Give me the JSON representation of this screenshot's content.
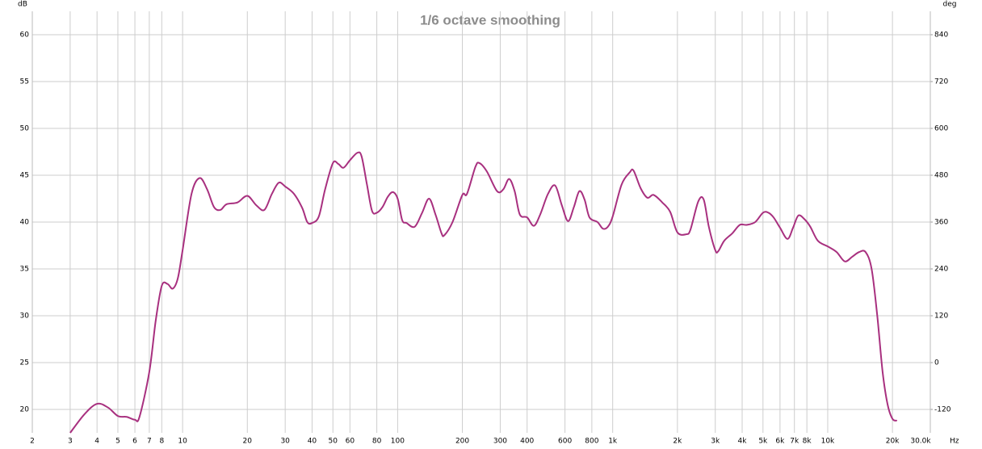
{
  "chart_data": {
    "type": "line",
    "title": "1/6 octave smoothing",
    "ylabel": "dB",
    "y2label": "deg",
    "xunit": "Hz",
    "xscale": "log",
    "grid": true,
    "xlim": [
      2,
      30000
    ],
    "ylim": [
      17.5,
      62.5
    ],
    "y2lim": [
      -180,
      900
    ],
    "xticks": [
      2,
      3,
      4,
      5,
      6,
      7,
      8,
      10,
      20,
      30,
      40,
      50,
      60,
      80,
      100,
      200,
      300,
      400,
      600,
      800,
      {
        "value": 1000,
        "label": "1k"
      },
      {
        "value": 2000,
        "label": "2k"
      },
      {
        "value": 3000,
        "label": "3k"
      },
      {
        "value": 4000,
        "label": "4k"
      },
      {
        "value": 5000,
        "label": "5k"
      },
      {
        "value": 6000,
        "label": "6k"
      },
      {
        "value": 7000,
        "label": "7k"
      },
      {
        "value": 8000,
        "label": "8k"
      },
      {
        "value": 10000,
        "label": "10k"
      },
      {
        "value": 20000,
        "label": "20k"
      },
      {
        "value": 30000,
        "label": "30.0k"
      }
    ],
    "yticks": [
      20,
      25,
      30,
      35,
      40,
      45,
      50,
      55,
      60
    ],
    "y2ticks": [
      -120,
      0,
      120,
      240,
      360,
      480,
      600,
      720,
      840
    ],
    "x": [
      3,
      3.5,
      4,
      4.5,
      5,
      5.5,
      6,
      6.3,
      7,
      7.5,
      8,
      8.5,
      9,
      9.5,
      10,
      11,
      12,
      13,
      14,
      15,
      16,
      18,
      20,
      22,
      24,
      26,
      28,
      30,
      33,
      36,
      38,
      40,
      43,
      46,
      50,
      53,
      56,
      60,
      65,
      68,
      72,
      76,
      80,
      85,
      90,
      95,
      100,
      105,
      110,
      120,
      130,
      140,
      150,
      160,
      165,
      180,
      200,
      210,
      230,
      240,
      260,
      290,
      310,
      330,
      350,
      370,
      400,
      430,
      460,
      500,
      540,
      580,
      620,
      660,
      700,
      740,
      780,
      850,
      900,
      950,
      1000,
      1100,
      1200,
      1250,
      1350,
      1450,
      1550,
      1700,
      1850,
      2000,
      2200,
      2300,
      2500,
      2650,
      2800,
      3000,
      3100,
      3300,
      3600,
      3900,
      4200,
      4600,
      5000,
      5300,
      5600,
      6000,
      6500,
      6900,
      7300,
      7800,
      8300,
      9000,
      10000,
      11000,
      12000,
      13000,
      14000,
      15000,
      16000,
      17000,
      18000,
      19000,
      20000,
      21000
    ],
    "series": [
      {
        "color": "#a8307f",
        "values": [
          17.5,
          19.5,
          20.6,
          20.2,
          19.3,
          19.2,
          18.9,
          19.2,
          24,
          29.5,
          33.2,
          33.4,
          32.9,
          34,
          37,
          43,
          44.7,
          43.5,
          41.6,
          41.3,
          41.9,
          42.1,
          42.8,
          41.8,
          41.3,
          43,
          44.2,
          43.8,
          43,
          41.5,
          40,
          39.9,
          40.6,
          43.5,
          46.3,
          46.2,
          45.8,
          46.6,
          47.4,
          47,
          44,
          41.2,
          41,
          41.6,
          42.7,
          43.2,
          42.5,
          40.2,
          39.9,
          39.5,
          41,
          42.5,
          40.8,
          38.8,
          38.6,
          40,
          42.9,
          43,
          45.9,
          46.3,
          45.4,
          43.3,
          43.5,
          44.6,
          43.3,
          40.8,
          40.5,
          39.6,
          40.8,
          43,
          43.9,
          41.8,
          40.1,
          41.6,
          43.3,
          42.4,
          40.5,
          40,
          39.3,
          39.5,
          40.6,
          44,
          45.3,
          45.5,
          43.6,
          42.6,
          42.9,
          42.1,
          41.1,
          38.9,
          38.7,
          39.2,
          42.2,
          42.4,
          39.5,
          37,
          36.9,
          38,
          38.8,
          39.7,
          39.7,
          40,
          41,
          41,
          40.5,
          39.4,
          38.2,
          39.4,
          40.7,
          40.3,
          39.5,
          38,
          37.4,
          36.8,
          35.8,
          36.3,
          36.8,
          36.8,
          35,
          30,
          24,
          20.5,
          19,
          18.8
        ]
      }
    ]
  }
}
